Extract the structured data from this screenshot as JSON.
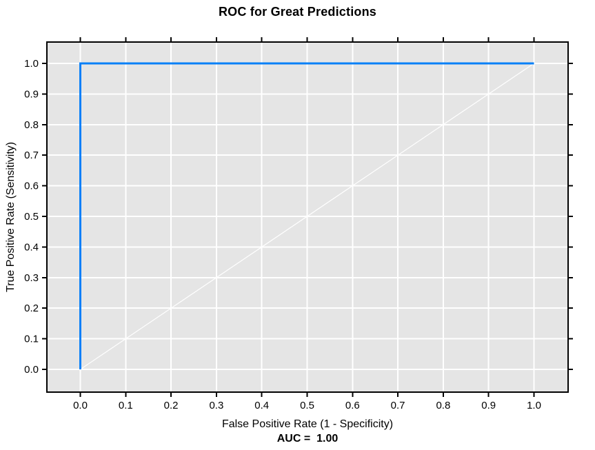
{
  "chart_data": {
    "type": "line",
    "title": "ROC for Great Predictions",
    "xlabel": "False Positive Rate (1 - Specificity)",
    "ylabel": "True Positive Rate (Sensitivity)",
    "annotation": "AUC =  1.00",
    "xlim": [
      0,
      1
    ],
    "ylim": [
      0,
      1
    ],
    "xticks": [
      0.0,
      0.1,
      0.2,
      0.3,
      0.4,
      0.5,
      0.6,
      0.7,
      0.8,
      0.9,
      1.0
    ],
    "yticks": [
      0.0,
      0.1,
      0.2,
      0.3,
      0.4,
      0.5,
      0.6,
      0.7,
      0.8,
      0.9,
      1.0
    ],
    "grid": true,
    "legend_position": "none",
    "colors": {
      "plot_background": "#E5E5E5",
      "grid": "#FFFFFF",
      "axis": "#000000",
      "text": "#000000",
      "roc_curve": "#0880F8",
      "chance_diagonal": "#FFFFFF"
    },
    "series": [
      {
        "name": "chance diagonal",
        "color": "#FFFFFF",
        "width": 1.2,
        "x": [
          0,
          1
        ],
        "y": [
          0,
          1
        ]
      },
      {
        "name": "ROC curve",
        "color": "#0880F8",
        "width": 3,
        "x": [
          0,
          0,
          1
        ],
        "y": [
          0,
          1,
          1
        ]
      }
    ]
  }
}
